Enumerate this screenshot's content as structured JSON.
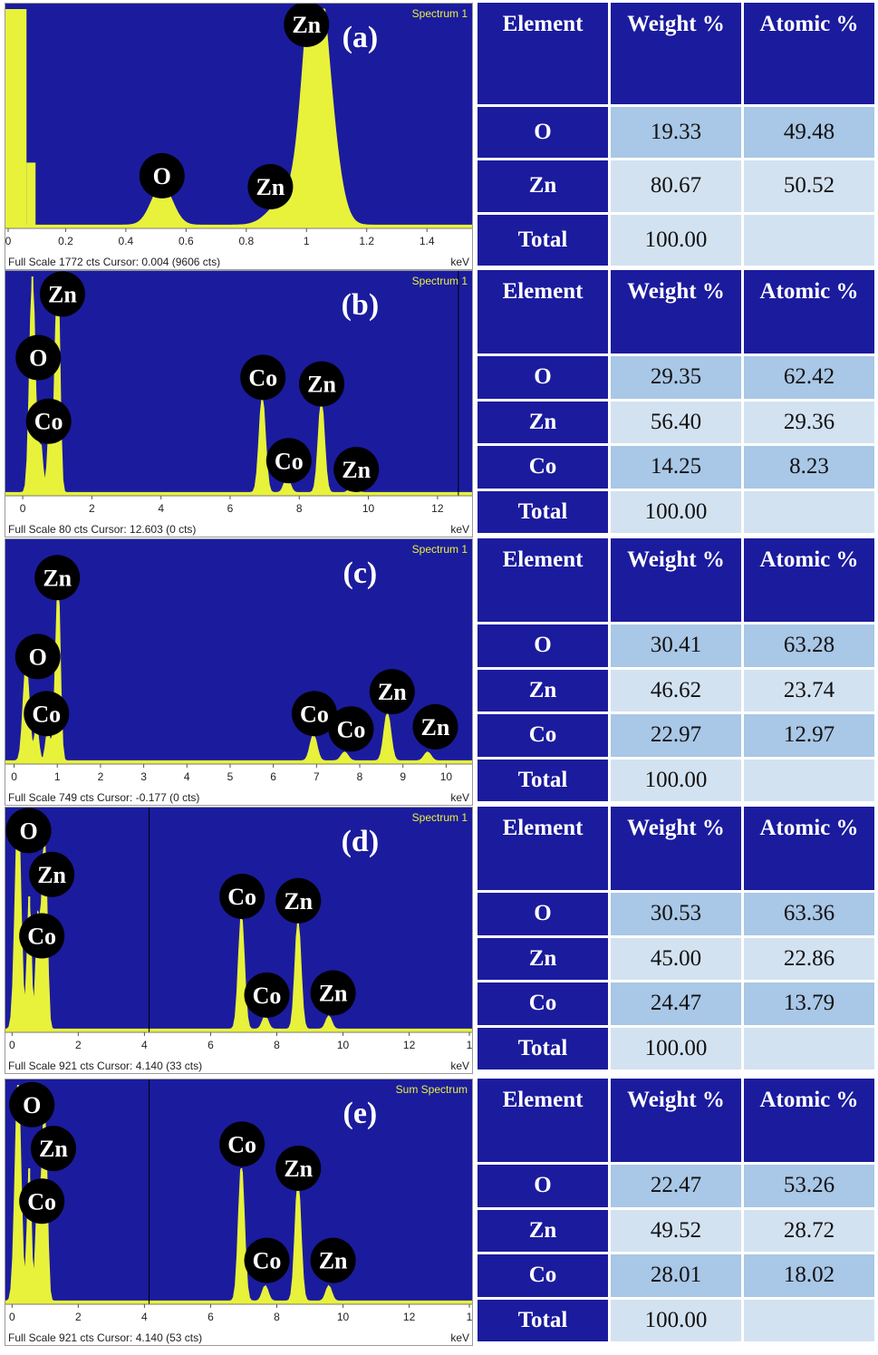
{
  "colors": {
    "plot_bg": "#1b1b9e",
    "peak": "#e8f23a",
    "table_header": "#1b1b9e",
    "cell_dark": "#a9c7e6",
    "cell_light": "#d3e2f1",
    "bubble": "#000000"
  },
  "table_headers": [
    "Element",
    "Weight %",
    "Atomic %"
  ],
  "chart_data": [
    {
      "type": "spectrum",
      "panel_label": "(a)",
      "spectrum_name": "Spectrum 1",
      "footer": "Full Scale 1772 cts Cursor: 0.004  (9606 cts)",
      "unit": "keV",
      "xlim": [
        0,
        1.55
      ],
      "ticks": [
        "0",
        "0.2",
        "0.4",
        "0.6",
        "0.8",
        "1",
        "1.2",
        "1.4"
      ],
      "tick_values": [
        0,
        0.2,
        0.4,
        0.6,
        0.8,
        1.0,
        1.2,
        1.4
      ],
      "cursor_keV": 0.004,
      "peaks": [
        {
          "keV": 0.52,
          "height": 0.18,
          "width": 0.035
        },
        {
          "keV": 0.93,
          "height": 0.12,
          "width": 0.05
        },
        {
          "keV": 1.02,
          "height": 0.86,
          "width": 0.035
        },
        {
          "keV": 1.06,
          "height": 0.55,
          "width": 0.04
        }
      ],
      "baseline_bars": [
        {
          "keV": 0.0,
          "height": 1.0,
          "width_keV": 0.07
        },
        {
          "keV": 0.07,
          "height": 0.3,
          "width_keV": 0.03
        }
      ],
      "labels": [
        {
          "text": "O",
          "keV": 0.52,
          "level": 0.24
        },
        {
          "text": "Zn",
          "keV": 0.88,
          "level": 0.19
        },
        {
          "text": "Zn",
          "keV": 1.0,
          "level": 0.93
        }
      ],
      "table": [
        {
          "element": "O",
          "weight": "19.33",
          "atomic": "49.48"
        },
        {
          "element": "Zn",
          "weight": "80.67",
          "atomic": "50.52"
        },
        {
          "element": "Total",
          "weight": "100.00",
          "atomic": ""
        }
      ]
    },
    {
      "type": "spectrum",
      "panel_label": "(b)",
      "spectrum_name": "Spectrum 1",
      "footer": "Full Scale 80 cts Cursor: 12.603  (0 cts)",
      "unit": "keV",
      "xlim": [
        -0.5,
        13.0
      ],
      "ticks": [
        "0",
        "2",
        "4",
        "6",
        "8",
        "10",
        "12"
      ],
      "tick_values": [
        0,
        2,
        4,
        6,
        8,
        10,
        12
      ],
      "cursor_keV": 12.603,
      "peaks": [
        {
          "keV": 0.28,
          "height": 1.0,
          "width": 0.08
        },
        {
          "keV": 0.52,
          "height": 0.22,
          "width": 0.06
        },
        {
          "keV": 0.78,
          "height": 0.32,
          "width": 0.06
        },
        {
          "keV": 0.93,
          "height": 0.28,
          "width": 0.06
        },
        {
          "keV": 1.02,
          "height": 0.92,
          "width": 0.06
        },
        {
          "keV": 6.93,
          "height": 0.44,
          "width": 0.09
        },
        {
          "keV": 7.65,
          "height": 0.07,
          "width": 0.09
        },
        {
          "keV": 8.64,
          "height": 0.42,
          "width": 0.09
        },
        {
          "keV": 9.57,
          "height": 0.06,
          "width": 0.09
        }
      ],
      "labels": [
        {
          "text": "Zn",
          "keV": 1.15,
          "level": 0.92
        },
        {
          "text": "O",
          "keV": 0.45,
          "level": 0.63
        },
        {
          "text": "Co",
          "keV": 0.75,
          "level": 0.34
        },
        {
          "text": "Co",
          "keV": 6.95,
          "level": 0.54
        },
        {
          "text": "Zn",
          "keV": 8.65,
          "level": 0.51
        },
        {
          "text": "Co",
          "keV": 7.7,
          "level": 0.16
        },
        {
          "text": "Zn",
          "keV": 9.65,
          "level": 0.12
        }
      ],
      "table": [
        {
          "element": "O",
          "weight": "29.35",
          "atomic": "62.42"
        },
        {
          "element": "Zn",
          "weight": "56.40",
          "atomic": "29.36"
        },
        {
          "element": "Co",
          "weight": "14.25",
          "atomic": "8.23"
        },
        {
          "element": "Total",
          "weight": "100.00",
          "atomic": ""
        }
      ]
    },
    {
      "type": "spectrum",
      "panel_label": "(c)",
      "spectrum_name": "Spectrum 1",
      "footer": "Full Scale 749 cts Cursor: -0.177  (0 cts)",
      "unit": "keV",
      "xlim": [
        -0.2,
        10.6
      ],
      "ticks": [
        "0",
        "1",
        "2",
        "3",
        "4",
        "5",
        "6",
        "7",
        "8",
        "9",
        "10"
      ],
      "tick_values": [
        0,
        1,
        2,
        3,
        4,
        5,
        6,
        7,
        8,
        9,
        10
      ],
      "cursor_keV": -0.177,
      "peaks": [
        {
          "keV": 0.28,
          "height": 0.45,
          "width": 0.07
        },
        {
          "keV": 0.52,
          "height": 0.16,
          "width": 0.05
        },
        {
          "keV": 0.78,
          "height": 0.14,
          "width": 0.05
        },
        {
          "keV": 0.93,
          "height": 0.12,
          "width": 0.05
        },
        {
          "keV": 1.02,
          "height": 0.8,
          "width": 0.05
        },
        {
          "keV": 6.93,
          "height": 0.12,
          "width": 0.08
        },
        {
          "keV": 7.65,
          "height": 0.04,
          "width": 0.08
        },
        {
          "keV": 8.64,
          "height": 0.22,
          "width": 0.08
        },
        {
          "keV": 9.57,
          "height": 0.04,
          "width": 0.08
        }
      ],
      "labels": [
        {
          "text": "Zn",
          "keV": 1.0,
          "level": 0.85
        },
        {
          "text": "O",
          "keV": 0.55,
          "level": 0.49
        },
        {
          "text": "Co",
          "keV": 0.75,
          "level": 0.23
        },
        {
          "text": "Co",
          "keV": 6.95,
          "level": 0.23
        },
        {
          "text": "Co",
          "keV": 7.8,
          "level": 0.16
        },
        {
          "text": "Zn",
          "keV": 8.75,
          "level": 0.33
        },
        {
          "text": "Zn",
          "keV": 9.75,
          "level": 0.17
        }
      ],
      "table": [
        {
          "element": "O",
          "weight": "30.41",
          "atomic": "63.28"
        },
        {
          "element": "Zn",
          "weight": "46.62",
          "atomic": "23.74"
        },
        {
          "element": "Co",
          "weight": "22.97",
          "atomic": "12.97"
        },
        {
          "element": "Total",
          "weight": "100.00",
          "atomic": ""
        }
      ]
    },
    {
      "type": "spectrum",
      "panel_label": "(d)",
      "spectrum_name": "Spectrum 1",
      "footer": "Full Scale 921 cts Cursor: 4.140  (33 cts)",
      "unit": "keV",
      "xlim": [
        -0.2,
        13.9
      ],
      "ticks": [
        "0",
        "2",
        "4",
        "6",
        "8",
        "10",
        "12",
        "1"
      ],
      "tick_values": [
        0,
        2,
        4,
        6,
        8,
        10,
        12,
        13.9
      ],
      "cursor_keV": 4.14,
      "peaks": [
        {
          "keV": 0.18,
          "height": 1.0,
          "width": 0.09
        },
        {
          "keV": 0.52,
          "height": 0.62,
          "width": 0.06
        },
        {
          "keV": 0.78,
          "height": 0.52,
          "width": 0.06
        },
        {
          "keV": 0.93,
          "height": 0.55,
          "width": 0.06
        },
        {
          "keV": 1.02,
          "height": 0.6,
          "width": 0.06
        },
        {
          "keV": 6.93,
          "height": 0.52,
          "width": 0.09
        },
        {
          "keV": 7.65,
          "height": 0.06,
          "width": 0.09
        },
        {
          "keV": 8.64,
          "height": 0.5,
          "width": 0.09
        },
        {
          "keV": 9.57,
          "height": 0.06,
          "width": 0.09
        }
      ],
      "labels": [
        {
          "text": "O",
          "keV": 0.5,
          "level": 0.92
        },
        {
          "text": "Zn",
          "keV": 1.2,
          "level": 0.72
        },
        {
          "text": "Co",
          "keV": 0.9,
          "level": 0.44
        },
        {
          "text": "Co",
          "keV": 6.95,
          "level": 0.62
        },
        {
          "text": "Zn",
          "keV": 8.65,
          "level": 0.6
        },
        {
          "text": "Co",
          "keV": 7.7,
          "level": 0.17
        },
        {
          "text": "Zn",
          "keV": 9.7,
          "level": 0.18
        }
      ],
      "table": [
        {
          "element": "O",
          "weight": "30.53",
          "atomic": "63.36"
        },
        {
          "element": "Zn",
          "weight": "45.00",
          "atomic": "22.86"
        },
        {
          "element": "Co",
          "weight": "24.47",
          "atomic": "13.79"
        },
        {
          "element": "Total",
          "weight": "100.00",
          "atomic": ""
        }
      ]
    },
    {
      "type": "spectrum",
      "panel_label": "(e)",
      "spectrum_name": "Sum Spectrum",
      "footer": "Full Scale 921 cts Cursor: 4.140  (53 cts)",
      "unit": "keV",
      "xlim": [
        -0.2,
        13.9
      ],
      "ticks": [
        "0",
        "2",
        "4",
        "6",
        "8",
        "10",
        "12",
        "1"
      ],
      "tick_values": [
        0,
        2,
        4,
        6,
        8,
        10,
        12,
        13.9
      ],
      "cursor_keV": 4.14,
      "peaks": [
        {
          "keV": 0.18,
          "height": 1.0,
          "width": 0.09
        },
        {
          "keV": 0.52,
          "height": 0.62,
          "width": 0.06
        },
        {
          "keV": 0.78,
          "height": 0.52,
          "width": 0.06
        },
        {
          "keV": 0.93,
          "height": 0.55,
          "width": 0.06
        },
        {
          "keV": 1.02,
          "height": 0.6,
          "width": 0.06
        },
        {
          "keV": 6.93,
          "height": 0.62,
          "width": 0.09
        },
        {
          "keV": 7.65,
          "height": 0.07,
          "width": 0.09
        },
        {
          "keV": 8.64,
          "height": 0.55,
          "width": 0.09
        },
        {
          "keV": 9.57,
          "height": 0.07,
          "width": 0.09
        }
      ],
      "labels": [
        {
          "text": "O",
          "keV": 0.6,
          "level": 0.91
        },
        {
          "text": "Zn",
          "keV": 1.25,
          "level": 0.71
        },
        {
          "text": "Co",
          "keV": 0.9,
          "level": 0.47
        },
        {
          "text": "Co",
          "keV": 6.95,
          "level": 0.73
        },
        {
          "text": "Zn",
          "keV": 8.65,
          "level": 0.62
        },
        {
          "text": "Co",
          "keV": 7.7,
          "level": 0.2
        },
        {
          "text": "Zn",
          "keV": 9.7,
          "level": 0.2
        }
      ],
      "table": [
        {
          "element": "O",
          "weight": "22.47",
          "atomic": "53.26"
        },
        {
          "element": "Zn",
          "weight": "49.52",
          "atomic": "28.72"
        },
        {
          "element": "Co",
          "weight": "28.01",
          "atomic": "18.02"
        },
        {
          "element": "Total",
          "weight": "100.00",
          "atomic": ""
        }
      ]
    }
  ]
}
